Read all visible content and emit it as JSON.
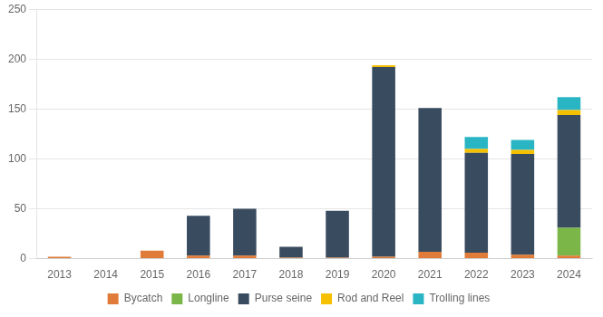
{
  "chart_data": {
    "type": "bar",
    "stacked": true,
    "categories": [
      "2013",
      "2014",
      "2015",
      "2016",
      "2017",
      "2018",
      "2019",
      "2020",
      "2021",
      "2022",
      "2023",
      "2024"
    ],
    "series": [
      {
        "name": "Bycatch",
        "color": "#e07b39",
        "values": [
          2,
          0,
          8,
          3,
          3,
          1,
          1,
          2,
          7,
          6,
          4,
          3
        ]
      },
      {
        "name": "Longline",
        "color": "#7ab648",
        "values": [
          0,
          0,
          0,
          0,
          0,
          0,
          0,
          0,
          0,
          0,
          0,
          28
        ]
      },
      {
        "name": "Purse seine",
        "color": "#394b5e",
        "values": [
          0,
          0,
          0,
          40,
          47,
          11,
          47,
          190,
          144,
          100,
          101,
          113
        ]
      },
      {
        "name": "Rod and Reel",
        "color": "#f5c000",
        "values": [
          0,
          0,
          0,
          0,
          0,
          0,
          0,
          2,
          0,
          4,
          4,
          5
        ]
      },
      {
        "name": "Trolling lines",
        "color": "#2ab5c5",
        "values": [
          0,
          0,
          0,
          0,
          0,
          0,
          0,
          0,
          0,
          12,
          10,
          13
        ]
      }
    ],
    "ylim": [
      0,
      250
    ],
    "yticks": [
      0,
      50,
      100,
      150,
      200,
      250
    ],
    "grid": true,
    "legend": "bottom"
  }
}
